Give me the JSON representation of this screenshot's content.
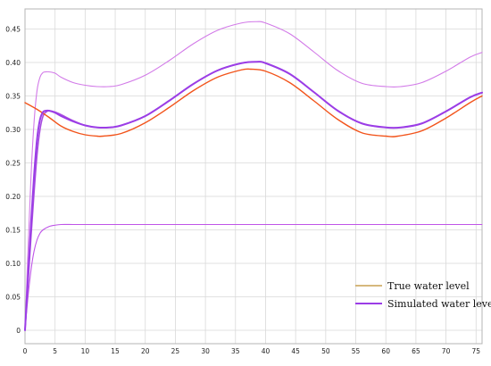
{
  "chart_data": {
    "type": "line",
    "title": "",
    "xlabel": "",
    "ylabel": "",
    "xlim": [
      0,
      76
    ],
    "ylim": [
      -0.02,
      0.48
    ],
    "xticks": [
      0,
      5,
      10,
      15,
      20,
      25,
      30,
      35,
      40,
      45,
      50,
      55,
      60,
      65,
      70,
      75
    ],
    "yticks": [
      0,
      0.05,
      0.1,
      0.15,
      0.2,
      0.25,
      0.3,
      0.35,
      0.4,
      0.45
    ],
    "xtick_labels": [
      "0",
      "5",
      "10",
      "15",
      "20",
      "25",
      "30",
      "35",
      "40",
      "45",
      "50",
      "55",
      "60",
      "65",
      "70",
      "75"
    ],
    "ytick_labels": [
      "0",
      "0.05",
      "0.10",
      "0.15",
      "0.20",
      "0.25",
      "0.30",
      "0.35",
      "0.40",
      "0.45"
    ],
    "grid": true,
    "legend_position": "bottom-right",
    "series": [
      {
        "name": "True water level",
        "color": "#f2541b",
        "legend_color": "#c8a050",
        "width": 1.4,
        "x": [
          0,
          2,
          4,
          6,
          8,
          10,
          12,
          13,
          16,
          20,
          24,
          28,
          32,
          36,
          37.5,
          40,
          44,
          48,
          52,
          56,
          60,
          62,
          66,
          70,
          74,
          76
        ],
        "y": [
          0.34,
          0.33,
          0.318,
          0.305,
          0.297,
          0.292,
          0.29,
          0.29,
          0.294,
          0.31,
          0.333,
          0.358,
          0.378,
          0.389,
          0.39,
          0.387,
          0.37,
          0.343,
          0.315,
          0.295,
          0.29,
          0.29,
          0.298,
          0.317,
          0.34,
          0.35
        ]
      },
      {
        "name": "Simulated water level",
        "color": "#9b3de6",
        "legend_color": "#9b3de6",
        "width": 2.0,
        "x": [
          0,
          0.5,
          1,
          1.5,
          2,
          2.5,
          3,
          3.5,
          4,
          5,
          6,
          8,
          10,
          12,
          14,
          16,
          20,
          24,
          28,
          32,
          36,
          38.5,
          40,
          44,
          48,
          52,
          56,
          60,
          62.5,
          66,
          70,
          74,
          76
        ],
        "y": [
          0.0,
          0.08,
          0.16,
          0.23,
          0.285,
          0.315,
          0.326,
          0.328,
          0.328,
          0.325,
          0.32,
          0.312,
          0.306,
          0.303,
          0.303,
          0.306,
          0.32,
          0.343,
          0.368,
          0.388,
          0.399,
          0.401,
          0.399,
          0.383,
          0.356,
          0.328,
          0.309,
          0.303,
          0.303,
          0.309,
          0.327,
          0.348,
          0.355
        ]
      },
      {
        "name": "",
        "color": "#a94ee0",
        "width": 1.6,
        "x": [
          0,
          0.5,
          1,
          1.5,
          2,
          2.5,
          3,
          3.5,
          4,
          5,
          6,
          8,
          10,
          12,
          14,
          16,
          20,
          24,
          28,
          32,
          36,
          38.5,
          40,
          44,
          48,
          52,
          56,
          60,
          62.5,
          66,
          70,
          74,
          76
        ],
        "y": [
          0.0,
          0.07,
          0.14,
          0.205,
          0.262,
          0.3,
          0.32,
          0.326,
          0.328,
          0.326,
          0.322,
          0.313,
          0.306,
          0.303,
          0.303,
          0.306,
          0.32,
          0.343,
          0.368,
          0.388,
          0.399,
          0.401,
          0.399,
          0.383,
          0.356,
          0.328,
          0.309,
          0.303,
          0.303,
          0.309,
          0.327,
          0.348,
          0.355
        ]
      },
      {
        "name": "",
        "color": "#d27ae8",
        "width": 1.1,
        "x": [
          0,
          0.5,
          1,
          1.5,
          2,
          2.5,
          3,
          3.5,
          4,
          5,
          6,
          8,
          10,
          12,
          14,
          16,
          20,
          24,
          28,
          32,
          36,
          38.5,
          40,
          44,
          48,
          52,
          56,
          60,
          62.5,
          66,
          70,
          74,
          76
        ],
        "y": [
          0.0,
          0.12,
          0.23,
          0.31,
          0.358,
          0.378,
          0.385,
          0.386,
          0.386,
          0.384,
          0.378,
          0.37,
          0.366,
          0.364,
          0.364,
          0.367,
          0.381,
          0.403,
          0.428,
          0.448,
          0.459,
          0.461,
          0.459,
          0.443,
          0.416,
          0.388,
          0.369,
          0.364,
          0.364,
          0.37,
          0.387,
          0.408,
          0.415
        ]
      },
      {
        "name": "",
        "color": "#bf55e8",
        "width": 1.1,
        "x": [
          0,
          0.5,
          1,
          1.5,
          2,
          2.5,
          3,
          4,
          5,
          6,
          8,
          10,
          20,
          30,
          40,
          50,
          60,
          70,
          76
        ],
        "y": [
          0.0,
          0.05,
          0.09,
          0.118,
          0.135,
          0.145,
          0.15,
          0.155,
          0.157,
          0.158,
          0.158,
          0.158,
          0.158,
          0.158,
          0.158,
          0.158,
          0.158,
          0.158,
          0.158
        ]
      }
    ],
    "legend": [
      {
        "label": "True water level",
        "color": "#c8a050"
      },
      {
        "label": "Simulated water level",
        "color": "#9b3de6"
      }
    ]
  }
}
